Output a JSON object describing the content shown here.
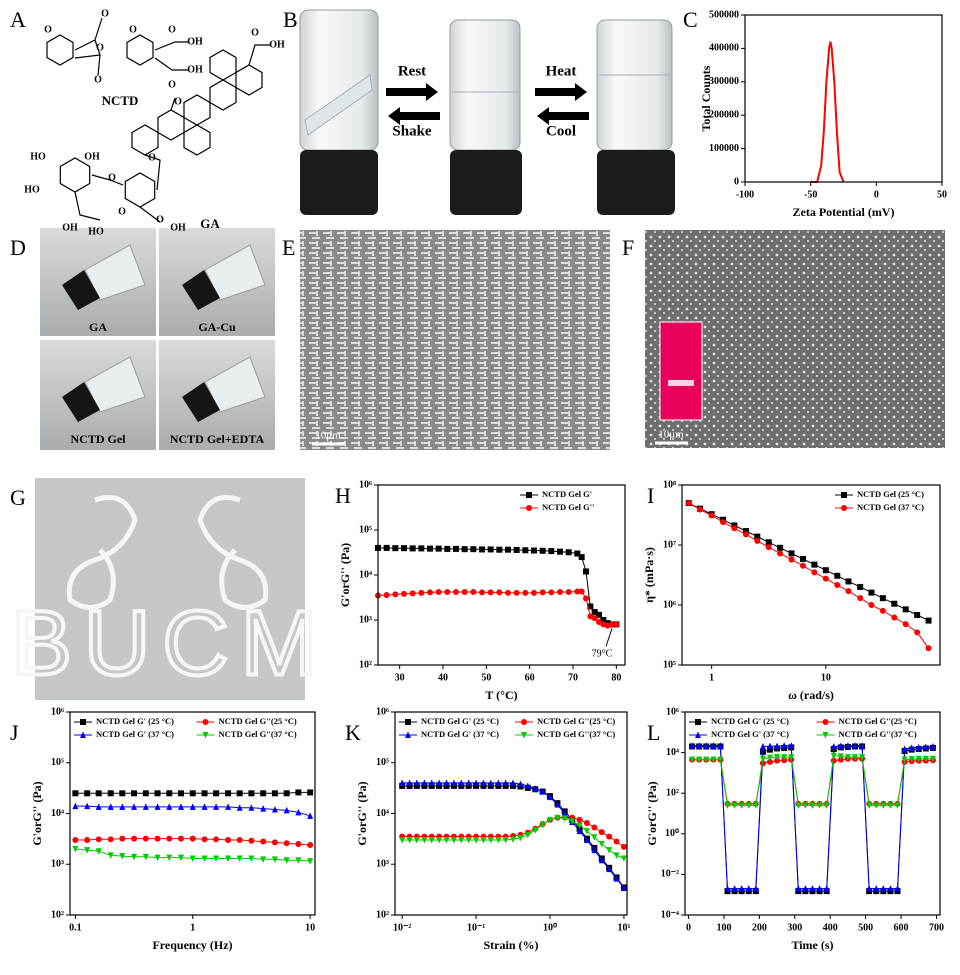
{
  "panel_labels": [
    "A",
    "B",
    "C",
    "D",
    "E",
    "F",
    "G",
    "H",
    "I",
    "J",
    "K",
    "L"
  ],
  "structures": {
    "nctd": "NCTD",
    "ga": "GA",
    "atoms": [
      "O",
      "O",
      "O",
      "O",
      "O",
      "OH",
      "O",
      "OH",
      "O",
      "OH",
      "O",
      "O",
      "HO",
      "OH",
      "HO",
      "O",
      "O",
      "OH",
      "HO",
      "O",
      "OH",
      "O"
    ]
  },
  "vial_arrows": [
    "Rest",
    "Shake",
    "Heat",
    "Cool"
  ],
  "vial_photos": [
    "GA",
    "GA-Cu",
    "NCTD Gel",
    "NCTD Gel+EDTA"
  ],
  "scale_bars": [
    "10μm",
    "10μm"
  ],
  "photo_text": "BUCM",
  "chart_data": [
    {
      "type": "line",
      "xlabel": "Zeta Potential (mV)",
      "ylabel": "Total Counts",
      "xlim": [
        -100,
        50
      ],
      "xticks": [
        -100,
        -50,
        0,
        50
      ],
      "ylim": [
        0,
        500000
      ],
      "yticks": [
        0,
        100000,
        200000,
        300000,
        400000,
        500000
      ],
      "x": [
        -50,
        -45,
        -42,
        -40,
        -38,
        -36,
        -35,
        -34,
        -32,
        -30,
        -28,
        -25
      ],
      "series": [
        {
          "name": null,
          "color": "#ff0000",
          "values": [
            0,
            0,
            50000,
            150000,
            300000,
            400000,
            420000,
            400000,
            300000,
            150000,
            30000,
            0
          ]
        }
      ]
    },
    {
      "type": "line",
      "xlabel": "T (°C)",
      "ylabel": "G'orG'' (Pa)",
      "ylog": true,
      "legend": "upper right",
      "xlim": [
        25,
        82
      ],
      "xticks": [
        30,
        40,
        50,
        60,
        70,
        80
      ],
      "ylim": [
        100,
        1000000
      ],
      "yticks": [
        {
          "value": 100,
          "label": "10²"
        },
        {
          "value": 1000,
          "label": "10³"
        },
        {
          "value": 10000,
          "label": "10⁴"
        },
        {
          "value": 100000,
          "label": "10⁵"
        },
        {
          "value": 1000000,
          "label": "10⁶"
        }
      ],
      "x": [
        25,
        27,
        29,
        31,
        33,
        35,
        37,
        39,
        41,
        43,
        45,
        47,
        49,
        51,
        53,
        55,
        57,
        59,
        61,
        63,
        65,
        67,
        69,
        71,
        72,
        73,
        74,
        75,
        76,
        77,
        78,
        79,
        80
      ],
      "series": [
        {
          "name": "NCTD Gel G'",
          "color": "#000000",
          "marker": "square",
          "values": [
            40000,
            40000,
            39500,
            39500,
            39000,
            39000,
            38500,
            38500,
            38000,
            38000,
            37500,
            37500,
            37000,
            37000,
            36500,
            36500,
            36000,
            35500,
            35000,
            34500,
            34000,
            33000,
            32000,
            30000,
            25000,
            12000,
            2000,
            1500,
            1300,
            1000,
            850,
            800,
            800
          ]
        },
        {
          "name": "NCTD Gel G''",
          "color": "#ff0000",
          "marker": "circle",
          "values": [
            3500,
            3600,
            3700,
            3800,
            3900,
            4000,
            4100,
            4200,
            4200,
            4200,
            4200,
            4200,
            4100,
            4100,
            4100,
            4000,
            4000,
            4000,
            4000,
            4100,
            4100,
            4200,
            4200,
            4300,
            4300,
            3000,
            1200,
            1100,
            900,
            800,
            750,
            800,
            800
          ]
        }
      ],
      "annotations": [
        {
          "text": "79°C",
          "x": 79,
          "y": 800
        }
      ]
    },
    {
      "type": "line",
      "xlabel": "ω (rad/s)",
      "ylabel": "η* (mPa·s)",
      "xlog": true,
      "ylog": true,
      "legend": "upper right",
      "xlim": [
        0.55,
        100
      ],
      "xticks": [
        1,
        10
      ],
      "ylim": [
        100000,
        100000000
      ],
      "yticks": [
        {
          "value": 100000,
          "label": "10⁵"
        },
        {
          "value": 1000000,
          "label": "10⁶"
        },
        {
          "value": 10000000,
          "label": "10⁷"
        },
        {
          "value": 100000000,
          "label": "10⁸"
        }
      ],
      "x": [
        0.63,
        0.79,
        1,
        1.26,
        1.58,
        2,
        2.51,
        3.16,
        3.98,
        5.01,
        6.31,
        7.94,
        10,
        12.6,
        15.8,
        20,
        25.1,
        31.6,
        39.8,
        50.1,
        63.1,
        79.4
      ],
      "series": [
        {
          "name": "NCTD Gel (25 °C)",
          "color": "#000000",
          "marker": "square",
          "values": [
            50000000,
            40400000,
            32600000,
            26300000,
            21200000,
            17100000,
            13800000,
            11100000,
            8980000,
            7240000,
            5840000,
            4710000,
            3800000,
            3070000,
            2470000,
            2000000,
            1610000,
            1300000,
            1050000,
            845000,
            681000,
            550000
          ]
        },
        {
          "name": "NCTD Gel (37 °C)",
          "color": "#ff0000",
          "marker": "circle",
          "values": [
            50000000,
            39000000,
            31000000,
            24000000,
            19000000,
            15000000,
            11700000,
            9200000,
            7200000,
            5700000,
            4500000,
            3500000,
            2750000,
            2150000,
            1700000,
            1300000,
            1000000,
            800000,
            620000,
            480000,
            350000,
            190000
          ]
        }
      ]
    },
    {
      "type": "line",
      "xlabel": "Frequency (Hz)",
      "ylabel": "G'orG'' (Pa)",
      "xlog": true,
      "ylog": true,
      "legend": "upper center",
      "legend_columns": 2,
      "xlim": [
        0.09,
        11
      ],
      "xticks": [
        0.1,
        1,
        10
      ],
      "ylim": [
        100,
        1000000
      ],
      "yticks": [
        {
          "value": 100,
          "label": "10²"
        },
        {
          "value": 1000,
          "label": "10³"
        },
        {
          "value": 10000,
          "label": "10⁴"
        },
        {
          "value": 100000,
          "label": "10⁵"
        },
        {
          "value": 1000000,
          "label": "10⁶"
        }
      ],
      "x": [
        0.1,
        0.126,
        0.158,
        0.2,
        0.251,
        0.316,
        0.398,
        0.501,
        0.631,
        0.794,
        1,
        1.26,
        1.58,
        2,
        2.51,
        3.16,
        3.98,
        5.01,
        6.31,
        7.94,
        10
      ],
      "series": [
        {
          "name": "NCTD Gel G' (25 °C)",
          "color": "#000000",
          "marker": "square",
          "values": [
            25000,
            25000,
            25000,
            25000,
            25000,
            25000,
            25000,
            25000,
            25000,
            25000,
            25000,
            25000,
            25000,
            25000,
            25000,
            25000,
            25000,
            25000,
            25000,
            26000,
            26000
          ]
        },
        {
          "name": "NCTD Gel G''(25 °C)",
          "color": "#ff0000",
          "marker": "circle",
          "values": [
            3000,
            3000,
            3100,
            3100,
            3200,
            3200,
            3200,
            3200,
            3200,
            3200,
            3200,
            3100,
            3100,
            3000,
            3000,
            2900,
            2800,
            2700,
            2600,
            2500,
            2400
          ]
        },
        {
          "name": "NCTD Gel G' (37 °C)",
          "color": "#0000ff",
          "marker": "triangle-up",
          "values": [
            14000,
            14000,
            13500,
            13500,
            13500,
            13500,
            13500,
            13500,
            13500,
            13500,
            13500,
            13500,
            13500,
            13500,
            13000,
            13000,
            12500,
            12000,
            11500,
            10500,
            9000
          ]
        },
        {
          "name": "NCTD Gel G''(37 °C)",
          "color": "#00cc00",
          "marker": "triangle-down",
          "values": [
            2000,
            1900,
            1800,
            1500,
            1450,
            1400,
            1400,
            1350,
            1350,
            1350,
            1300,
            1300,
            1300,
            1300,
            1300,
            1300,
            1250,
            1250,
            1200,
            1200,
            1150
          ]
        }
      ]
    },
    {
      "type": "line",
      "xlabel": "Strain (%)",
      "ylabel": "G'orG'' (Pa)",
      "xlog": true,
      "ylog": true,
      "legend": "upper center",
      "legend_columns": 2,
      "xlim": [
        0.008,
        11
      ],
      "xticks": [
        {
          "value": 0.01,
          "label": "10⁻²"
        },
        {
          "value": 0.1,
          "label": "10⁻¹"
        },
        {
          "value": 1,
          "label": "10⁰"
        },
        {
          "value": 10,
          "label": "10¹"
        }
      ],
      "ylim": [
        100,
        1000000
      ],
      "yticks": [
        {
          "value": 100,
          "label": "10²"
        },
        {
          "value": 1000,
          "label": "10³"
        },
        {
          "value": 10000,
          "label": "10⁴"
        },
        {
          "value": 100000,
          "label": "10⁵"
        },
        {
          "value": 1000000,
          "label": "10⁶"
        }
      ],
      "x": [
        0.01,
        0.0126,
        0.0158,
        0.02,
        0.0251,
        0.0316,
        0.0398,
        0.0501,
        0.0631,
        0.0794,
        0.1,
        0.126,
        0.158,
        0.2,
        0.251,
        0.316,
        0.398,
        0.501,
        0.631,
        0.794,
        1,
        1.26,
        1.58,
        2,
        2.51,
        3.16,
        3.98,
        5.01,
        6.31,
        7.94,
        10
      ],
      "series": [
        {
          "name": "NCTD Gel G' (25 °C)",
          "color": "#000000",
          "marker": "square",
          "values": [
            35000,
            35000,
            35000,
            35000,
            35000,
            35000,
            35000,
            35000,
            35000,
            35000,
            35000,
            35000,
            35000,
            35000,
            35000,
            35000,
            34000,
            32000,
            30000,
            27000,
            22000,
            16000,
            11000,
            7500,
            5000,
            3200,
            2100,
            1300,
            850,
            550,
            350
          ]
        },
        {
          "name": "NCTD Gel G''(25 °C)",
          "color": "#ff0000",
          "marker": "circle",
          "values": [
            3500,
            3500,
            3500,
            3500,
            3500,
            3500,
            3500,
            3500,
            3500,
            3500,
            3500,
            3500,
            3500,
            3500,
            3500,
            3600,
            3800,
            4200,
            5000,
            6200,
            7500,
            8300,
            8500,
            8300,
            7500,
            6500,
            5300,
            4300,
            3500,
            2800,
            2200
          ]
        },
        {
          "name": "NCTD Gel G' (37 °C)",
          "color": "#0000ff",
          "marker": "triangle-up",
          "values": [
            40000,
            40000,
            40000,
            40000,
            40000,
            40000,
            40000,
            40000,
            40000,
            40000,
            40000,
            40000,
            40000,
            40000,
            40000,
            40000,
            38000,
            35000,
            31000,
            27000,
            21000,
            15000,
            10000,
            6800,
            4500,
            3000,
            1900,
            1200,
            800,
            520,
            340
          ]
        },
        {
          "name": "NCTD Gel G''(37 °C)",
          "color": "#00cc00",
          "marker": "triangle-down",
          "values": [
            3000,
            3000,
            3000,
            3000,
            3000,
            3000,
            3000,
            3000,
            3000,
            3000,
            3000,
            3000,
            3000,
            3000,
            3000,
            3100,
            3300,
            3800,
            4700,
            6000,
            7500,
            8200,
            8000,
            7000,
            5800,
            4500,
            3400,
            2500,
            1900,
            1500,
            1300
          ]
        }
      ]
    },
    {
      "type": "line",
      "xlabel": "Time (s)",
      "ylabel": "G'orG'' (Pa)",
      "ylog": true,
      "legend": "upper center",
      "legend_columns": 2,
      "xlim": [
        -10,
        710
      ],
      "xticks": [
        0,
        100,
        200,
        300,
        400,
        500,
        600,
        700
      ],
      "ylim": [
        0.0001,
        1000000
      ],
      "yticks": [
        {
          "value": 0.0001,
          "label": "10⁻⁴"
        },
        {
          "value": 0.01,
          "label": "10⁻²"
        },
        {
          "value": 1,
          "label": "10⁰"
        },
        {
          "value": 100,
          "label": "10²"
        },
        {
          "value": 10000,
          "label": "10⁴"
        },
        {
          "value": 1000000,
          "label": "10⁶"
        }
      ],
      "x": [
        10,
        30,
        50,
        70,
        90,
        110,
        130,
        150,
        170,
        190,
        210,
        230,
        250,
        270,
        290,
        310,
        330,
        350,
        370,
        390,
        410,
        430,
        450,
        470,
        490,
        510,
        530,
        550,
        570,
        590,
        610,
        630,
        650,
        670,
        690
      ],
      "series": [
        {
          "name": "NCTD Gel G' (25 °C)",
          "color": "#000000",
          "marker": "square",
          "values": [
            20000,
            20000,
            20000,
            20000,
            20000,
            0.0015,
            0.0015,
            0.0015,
            0.0015,
            0.0015,
            11000,
            14000,
            16000,
            17000,
            18000,
            0.0015,
            0.0015,
            0.0015,
            0.0015,
            0.0015,
            15000,
            18000,
            19000,
            20000,
            20000,
            0.0015,
            0.0015,
            0.0015,
            0.0015,
            0.0015,
            12000,
            14000,
            15000,
            16000,
            17000
          ]
        },
        {
          "name": "NCTD Gel G''(25 °C)",
          "color": "#ff0000",
          "marker": "circle",
          "values": [
            4500,
            4500,
            4500,
            4500,
            4500,
            30,
            30,
            30,
            30,
            30,
            3000,
            3500,
            4000,
            4200,
            4500,
            30,
            30,
            30,
            30,
            30,
            4000,
            4500,
            5000,
            5000,
            5000,
            30,
            30,
            30,
            30,
            30,
            3500,
            3800,
            4000,
            4000,
            4200
          ]
        },
        {
          "name": "NCTD Gel G' (37 °C)",
          "color": "#0000ff",
          "marker": "triangle-up",
          "values": [
            22000,
            22000,
            22000,
            22000,
            22000,
            0.002,
            0.002,
            0.002,
            0.002,
            0.002,
            20000,
            21000,
            21000,
            22000,
            22000,
            0.002,
            0.002,
            0.002,
            0.002,
            0.002,
            20000,
            21000,
            22000,
            22000,
            22000,
            0.002,
            0.002,
            0.002,
            0.002,
            0.002,
            15000,
            17000,
            18000,
            19000,
            20000
          ]
        },
        {
          "name": "NCTD Gel G''(37 °C)",
          "color": "#00cc00",
          "marker": "triangle-down",
          "values": [
            4500,
            4500,
            4500,
            4500,
            4500,
            25,
            25,
            25,
            25,
            25,
            5000,
            5500,
            6000,
            6000,
            6000,
            25,
            25,
            25,
            25,
            25,
            7000,
            6500,
            6000,
            6000,
            6000,
            25,
            25,
            25,
            25,
            25,
            4500,
            4800,
            5000,
            5000,
            5000
          ]
        }
      ]
    }
  ]
}
